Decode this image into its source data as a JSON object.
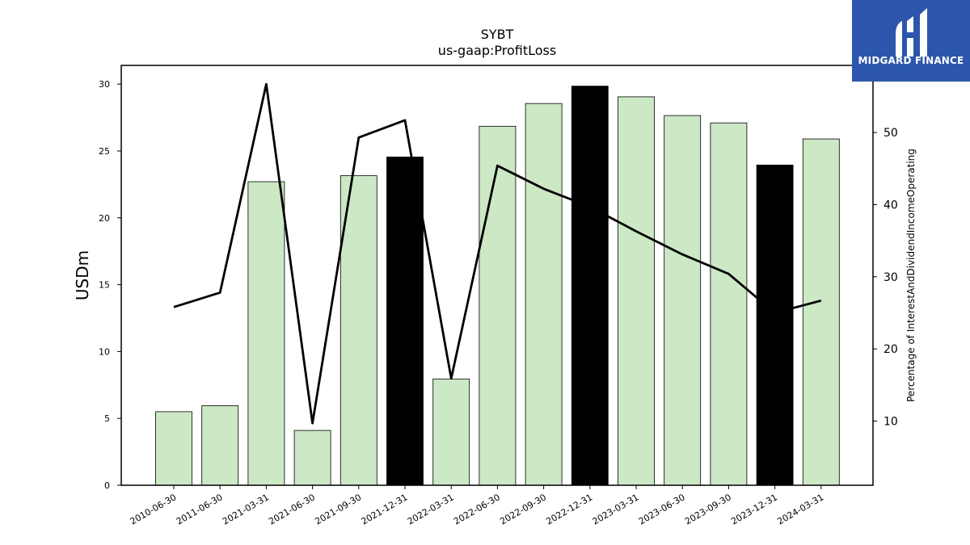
{
  "logo": {
    "text": "MIDGARD FINANCE",
    "icon": "midgard-logo-icon"
  },
  "chart_data": {
    "type": "bar",
    "title": "SYBT",
    "subtitle": "us-gaap:ProfitLoss",
    "ylabel": "USDm",
    "y2label": "Percentage of InterestAndDividendIncomeOperating",
    "categories": [
      "2010-06-30",
      "2011-06-30",
      "2021-03-31",
      "2021-06-30",
      "2021-09-30",
      "2021-12-31",
      "2022-03-31",
      "2022-06-30",
      "2022-09-30",
      "2022-12-31",
      "2023-03-31",
      "2023-06-30",
      "2023-09-30",
      "2023-12-31",
      "2024-03-31"
    ],
    "series": [
      {
        "axis": "left",
        "kind": "bar",
        "values": [
          5.5,
          5.95,
          22.7,
          4.1,
          23.15,
          24.55,
          7.95,
          26.85,
          28.55,
          29.85,
          29.05,
          27.65,
          27.1,
          23.95,
          25.9
        ],
        "colors": [
          "#cce8c5",
          "#cce8c5",
          "#cce8c5",
          "#cce8c5",
          "#cce8c5",
          "#000000",
          "#cce8c5",
          "#cce8c5",
          "#cce8c5",
          "#000000",
          "#cce8c5",
          "#cce8c5",
          "#cce8c5",
          "#000000",
          "#cce8c5"
        ]
      },
      {
        "axis": "right",
        "kind": "line",
        "color": "#000000",
        "values": [
          25.8,
          27.8,
          56.7,
          9.7,
          49.3,
          51.7,
          15.9,
          45.4,
          42.2,
          39.7,
          36.3,
          33.1,
          30.4,
          25.0,
          26.7
        ]
      }
    ],
    "ylim": [
      0,
      31.4
    ],
    "y_ticks": [
      0,
      5,
      10,
      15,
      20,
      25,
      30
    ],
    "y2lim": [
      1.1,
      59.3
    ],
    "y2_ticks": [
      10,
      20,
      30,
      40,
      50
    ],
    "grid": false,
    "legend": "none",
    "bar_edge_color": "#000000"
  }
}
